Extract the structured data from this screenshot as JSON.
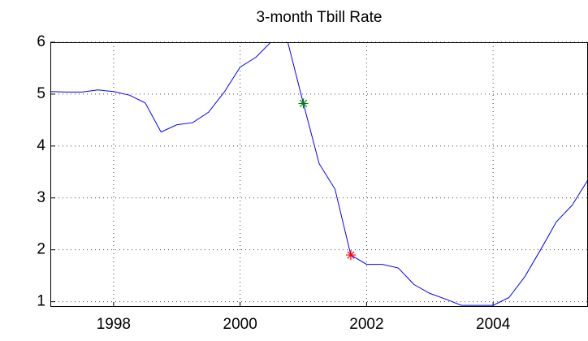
{
  "chart_data": {
    "type": "line",
    "title": "3-month Tbill Rate",
    "x": [
      1997,
      1997.25,
      1997.5,
      1997.75,
      1998,
      1998.25,
      1998.5,
      1998.75,
      1999,
      1999.25,
      1999.5,
      1999.75,
      2000,
      2000.25,
      2000.5,
      2000.75,
      2001,
      2001.25,
      2001.5,
      2001.75,
      2002,
      2002.25,
      2002.5,
      2002.75,
      2003,
      2003.25,
      2003.5,
      2003.75,
      2004,
      2004.25,
      2004.5,
      2004.75,
      2005,
      2005.25,
      2005.5
    ],
    "series": [
      {
        "color": "#0000ff",
        "values": [
          5.05,
          5.04,
          5.04,
          5.08,
          5.05,
          4.98,
          4.83,
          4.27,
          4.41,
          4.45,
          4.65,
          5.04,
          5.52,
          5.71,
          6.02,
          6.02,
          4.82,
          3.66,
          3.17,
          1.9,
          1.72,
          1.72,
          1.65,
          1.33,
          1.16,
          1.05,
          0.93,
          0.93,
          0.93,
          1.08,
          1.48,
          2.0,
          2.54,
          2.86,
          3.35
        ]
      }
    ],
    "markers": [
      {
        "x": 2001,
        "y": 4.82,
        "color": "#008000"
      },
      {
        "x": 2001.75,
        "y": 1.9,
        "color": "#ff0000"
      }
    ],
    "xlim": [
      1997,
      2005.5
    ],
    "ylim": [
      0.9,
      6
    ],
    "xticks": [
      1998,
      2000,
      2002,
      2004
    ],
    "yticks": [
      1,
      2,
      3,
      4,
      5,
      6
    ],
    "grid": true
  }
}
